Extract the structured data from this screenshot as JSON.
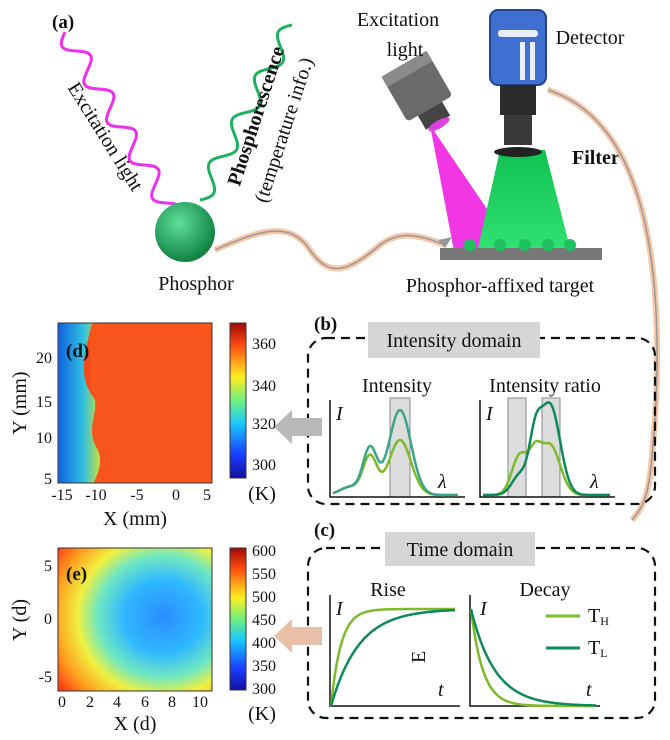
{
  "panel_a": {
    "label": "(a)",
    "excitation_wave": "Excitation light",
    "phosphorescence": "Phosphorescence",
    "temperature_info": "(temperature info.)",
    "phosphor": "Phosphor",
    "light_source": [
      "Excitation",
      "light"
    ],
    "detector": "Detector",
    "filter": "Filter",
    "target": "Phosphor-affixed target"
  },
  "panel_b": {
    "label": "(b)",
    "title": "Intensity domain",
    "plots": [
      {
        "title": "Intensity",
        "y": "I",
        "x": "λ"
      },
      {
        "title": "Intensity ratio",
        "y": "I",
        "x": "λ"
      }
    ]
  },
  "panel_c": {
    "label": "(c)",
    "title": "Time domain",
    "plots": [
      {
        "title": "Rise",
        "y": "I",
        "x": "t",
        "mark": "E"
      },
      {
        "title": "Decay",
        "y": "I",
        "x": "t"
      }
    ],
    "legend": [
      {
        "base": "T",
        "sub": "H"
      },
      {
        "base": "T",
        "sub": "L"
      }
    ]
  },
  "panel_d": {
    "label": "(d)",
    "x_label": "X (mm)",
    "y_label": "Y (mm)",
    "xticks": [
      "-15",
      "-10",
      "-5",
      "0",
      "5"
    ],
    "yticks": [
      "20",
      "15",
      "10",
      "5"
    ],
    "colorbar_ticks": [
      "360",
      "340",
      "320",
      "300"
    ],
    "colorbar_unit": "(K)"
  },
  "panel_e": {
    "label": "(e)",
    "x_label": "X (d)",
    "y_label": "Y (d)",
    "xticks": [
      "0",
      "2",
      "4",
      "6",
      "8",
      "10"
    ],
    "yticks": [
      "5",
      "0",
      "-5"
    ],
    "colorbar_ticks": [
      "600",
      "550",
      "500",
      "450",
      "400",
      "350",
      "300"
    ],
    "colorbar_unit": "(K)"
  }
}
